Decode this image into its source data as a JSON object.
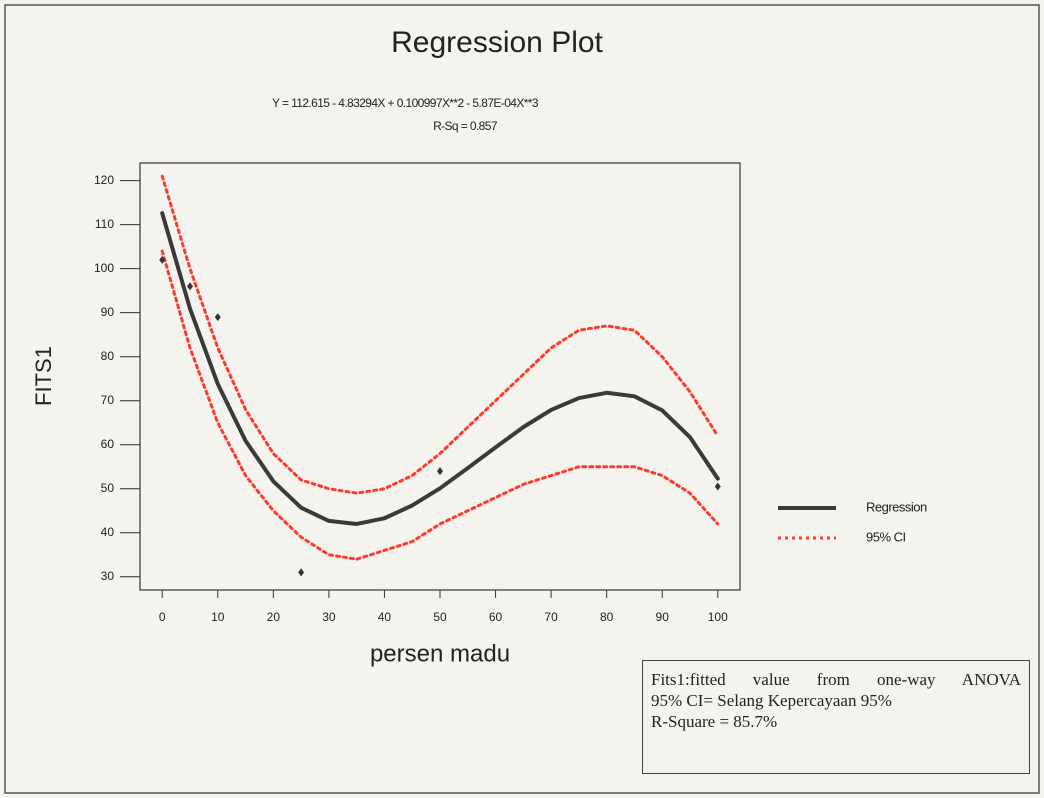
{
  "chart_data": {
    "type": "line",
    "title": "Regression Plot",
    "subtitle": "Y = 112.615 - 4.83294X + 0.100997X**2 - 5.87E-04X**3",
    "subtitle2": "R-Sq = 0.857",
    "x_label": "persen madu",
    "y_label": "FITS1",
    "x": [
      0,
      5,
      10,
      15,
      20,
      25,
      30,
      35,
      40,
      45,
      50,
      55,
      60,
      65,
      70,
      75,
      80,
      85,
      90,
      95,
      100
    ],
    "series": [
      {
        "name": "Regression",
        "color": "#3a3a3a",
        "style": "solid",
        "values": [
          112.6,
          90.9,
          73.8,
          60.9,
          51.7,
          45.7,
          42.7,
          42.0,
          43.3,
          46.2,
          50.1,
          54.7,
          59.4,
          64.0,
          67.9,
          70.6,
          71.8,
          71.0,
          67.8,
          61.7,
          52.3
        ]
      },
      {
        "name": "95% CI",
        "color": "#ff3b2f",
        "style": "dotted",
        "values": [
          121,
          100,
          82,
          68,
          58,
          52,
          50,
          49,
          50,
          53,
          58,
          64,
          70,
          76,
          82,
          86,
          87,
          86,
          80,
          72,
          62
        ],
        "lower": [
          104,
          82,
          65,
          53,
          45,
          39,
          35,
          34,
          36,
          38,
          42,
          45,
          48,
          51,
          53,
          55,
          55,
          55,
          53,
          49,
          42
        ]
      }
    ],
    "points": {
      "color": "#333333",
      "x": [
        0,
        5,
        10,
        25,
        50,
        100
      ],
      "y": [
        102,
        96,
        89,
        31,
        54,
        50.5
      ]
    },
    "xlim": [
      -4,
      104
    ],
    "ylim": [
      27,
      124
    ],
    "xticks": [
      0,
      10,
      20,
      30,
      40,
      50,
      60,
      70,
      80,
      90,
      100
    ],
    "yticks": [
      30,
      40,
      50,
      60,
      70,
      80,
      90,
      100,
      110,
      120
    ],
    "legend": "right",
    "notes": [
      "Fits1:fitted value from one-way ANOVA",
      "95% CI= Selang Kepercayaan 95%",
      "R-Square = 85.7%"
    ]
  }
}
